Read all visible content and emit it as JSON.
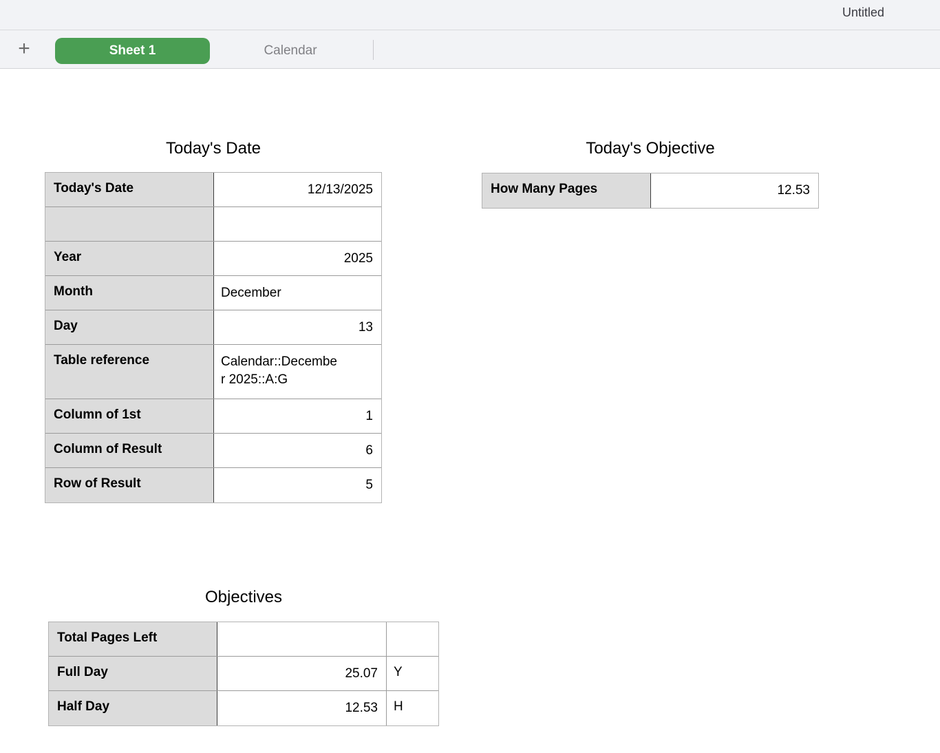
{
  "window": {
    "title": "Untitled"
  },
  "tab_bar": {
    "add_label": "+",
    "tabs": [
      {
        "label": "Sheet 1",
        "active": true
      },
      {
        "label": "Calendar",
        "active": false
      }
    ]
  },
  "colors": {
    "active_tab_green": "#4a9e53",
    "header_cell_gray": "#dcdcdc",
    "bar_background": "#f2f3f6"
  },
  "tables": {
    "todays_date": {
      "title": "Today's Date",
      "rows": [
        {
          "label": "Today's Date",
          "value": "12/13/2025"
        },
        {
          "label": "",
          "value": ""
        },
        {
          "label": "Year",
          "value": "2025"
        },
        {
          "label": "Month",
          "value": "December"
        },
        {
          "label": "Day",
          "value": "13"
        },
        {
          "label": "Table reference",
          "value": "Calendar::December 2025::A:G"
        },
        {
          "label": "Column of 1st",
          "value": "1"
        },
        {
          "label": "Column of Result",
          "value": "6"
        },
        {
          "label": "Row of Result",
          "value": "5"
        }
      ]
    },
    "todays_objective": {
      "title": "Today's Objective",
      "rows": [
        {
          "label": "How Many Pages",
          "value": "12.53"
        }
      ]
    },
    "objectives": {
      "title": "Objectives",
      "rows": [
        {
          "label": "Total Pages Left",
          "value": "",
          "flag": ""
        },
        {
          "label": "Full Day",
          "value": "25.07",
          "flag": "Y"
        },
        {
          "label": "Half Day",
          "value": "12.53",
          "flag": "H"
        }
      ]
    }
  }
}
